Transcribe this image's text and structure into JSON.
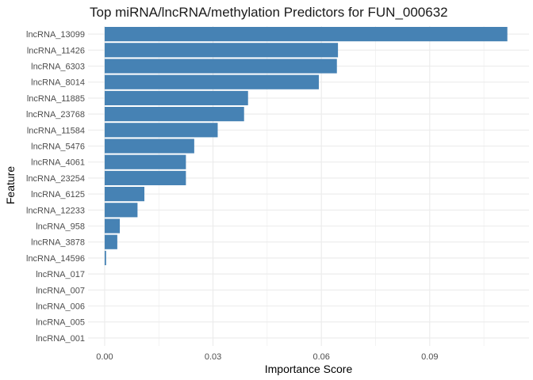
{
  "chart_data": {
    "type": "bar",
    "orientation": "horizontal",
    "title": "Top miRNA/lncRNA/methylation Predictors for FUN_000632",
    "xlabel": "Importance Score",
    "ylabel": "Feature",
    "xlim": [
      -0.0046,
      0.1175
    ],
    "xticks": [
      0.0,
      0.03,
      0.06,
      0.09
    ],
    "xtick_labels": [
      "0.00",
      "0.03",
      "0.06",
      "0.09"
    ],
    "grid": true,
    "bar_color": "#4682B4",
    "categories": [
      "lncRNA_13099",
      "lncRNA_11426",
      "lncRNA_6303",
      "lncRNA_8014",
      "lncRNA_11885",
      "lncRNA_23768",
      "lncRNA_11584",
      "lncRNA_5476",
      "lncRNA_4061",
      "lncRNA_23254",
      "lncRNA_6125",
      "lncRNA_12233",
      "lncRNA_958",
      "lncRNA_3878",
      "lncRNA_14596",
      "lncRNA_017",
      "lncRNA_007",
      "lncRNA_006",
      "lncRNA_005",
      "lncRNA_001"
    ],
    "values": [
      0.1115,
      0.0646,
      0.0643,
      0.0593,
      0.0397,
      0.0386,
      0.0313,
      0.0248,
      0.0225,
      0.0225,
      0.011,
      0.0091,
      0.0042,
      0.0035,
      0.0004,
      0,
      0,
      0,
      0,
      0
    ]
  }
}
